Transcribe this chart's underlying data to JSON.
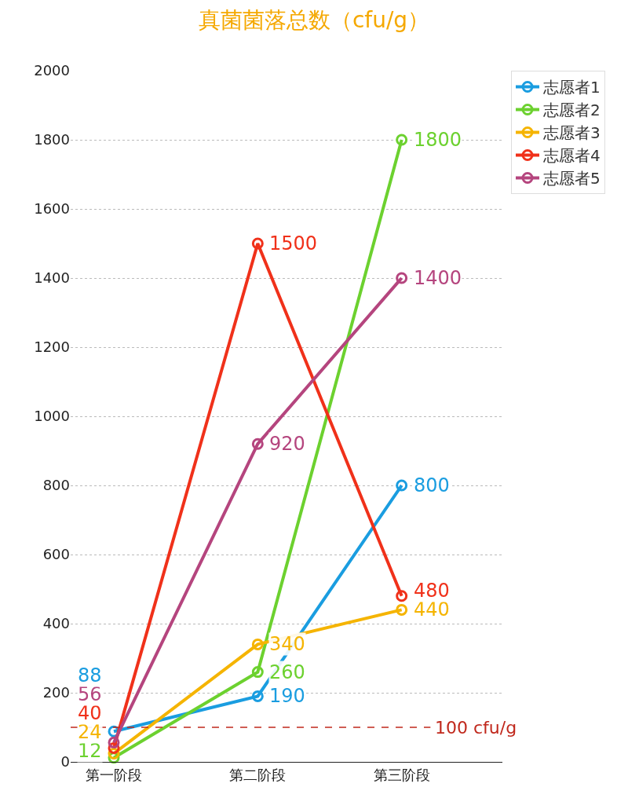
{
  "chart_data": {
    "type": "line",
    "title": "真菌菌落总数（cfu/g）",
    "categories": [
      "第一阶段",
      "第二阶段",
      "第三阶段"
    ],
    "series": [
      {
        "name": "志愿者1",
        "color": "#1a9de0",
        "values": [
          88,
          190,
          800
        ]
      },
      {
        "name": "志愿者2",
        "color": "#6cd12f",
        "values": [
          12,
          260,
          1800
        ]
      },
      {
        "name": "志愿者3",
        "color": "#f5b400",
        "values": [
          24,
          340,
          440
        ]
      },
      {
        "name": "志愿者4",
        "color": "#f0311a",
        "values": [
          40,
          1500,
          480
        ]
      },
      {
        "name": "志愿者5",
        "color": "#b5457e",
        "values": [
          56,
          920,
          1400
        ]
      }
    ],
    "ylim": [
      0,
      2000
    ],
    "yticks": [
      0,
      200,
      400,
      600,
      800,
      1000,
      1200,
      1400,
      1600,
      1800,
      2000
    ],
    "ref_lines": [
      {
        "axis": "y",
        "value": 100,
        "label": "100 cfu/g",
        "color": "#c0281c",
        "line_style": "dashed"
      }
    ],
    "data_labels": true,
    "grid": "y",
    "legend": "top right",
    "marker": "circle",
    "line_style": "solid"
  }
}
